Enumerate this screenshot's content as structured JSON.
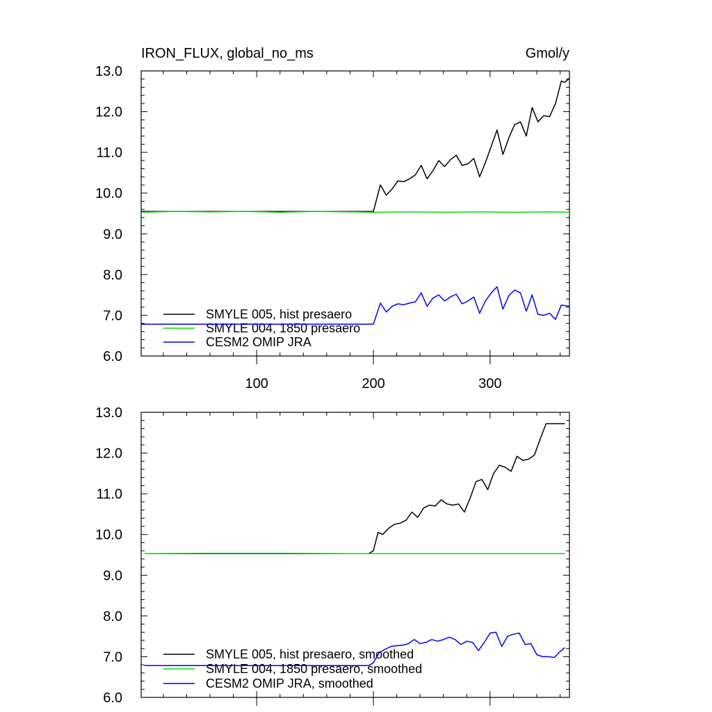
{
  "figure": {
    "title_left": "IRON_FLUX, global_no_ms",
    "title_right": "Gmol/y"
  },
  "chart_data": [
    {
      "type": "line",
      "title": "IRON_FLUX, global_no_ms",
      "units": "Gmol/y",
      "xlim": [
        1,
        368
      ],
      "ylim": [
        6.0,
        13.0
      ],
      "yticks": [
        6.0,
        7.0,
        8.0,
        9.0,
        10.0,
        11.0,
        12.0,
        13.0
      ],
      "ytick_labels": [
        "6.0",
        "7.0",
        "8.0",
        "9.0",
        "10.0",
        "11.0",
        "12.0",
        "13.0"
      ],
      "xticks": [
        100,
        200,
        300
      ],
      "xtick_labels": [
        "100",
        "200",
        "300"
      ],
      "legend_location": "lower-left",
      "series": [
        {
          "name": "SMYLE 005, hist presaero",
          "color": "#000000",
          "x": [
            1,
            200,
            206,
            211,
            216,
            221,
            226,
            231,
            236,
            241,
            246,
            251,
            256,
            261,
            266,
            271,
            276,
            281,
            286,
            291,
            296,
            301,
            306,
            311,
            316,
            321,
            326,
            331,
            336,
            341,
            346,
            351,
            356,
            361,
            364,
            368
          ],
          "y": [
            9.55,
            9.55,
            10.2,
            9.95,
            10.1,
            10.3,
            10.28,
            10.35,
            10.45,
            10.68,
            10.35,
            10.55,
            10.8,
            10.65,
            10.82,
            10.93,
            10.68,
            10.72,
            10.85,
            10.4,
            10.75,
            11.15,
            11.55,
            10.95,
            11.35,
            11.68,
            11.75,
            11.4,
            12.1,
            11.75,
            11.9,
            11.88,
            12.2,
            12.75,
            12.72,
            12.82
          ]
        },
        {
          "name": "SMYLE 004, 1850 presaero",
          "color": "#00dd00",
          "x": [
            1,
            30,
            60,
            90,
            120,
            150,
            180,
            200,
            230,
            260,
            290,
            320,
            350,
            368
          ],
          "y": [
            9.53,
            9.55,
            9.54,
            9.55,
            9.53,
            9.55,
            9.54,
            9.53,
            9.54,
            9.53,
            9.54,
            9.53,
            9.54,
            9.53
          ]
        },
        {
          "name": "CESM2 OMIP JRA",
          "color": "#0000ee",
          "x": [
            1,
            200,
            206,
            211,
            216,
            221,
            226,
            231,
            236,
            241,
            246,
            251,
            256,
            261,
            266,
            271,
            276,
            281,
            286,
            291,
            296,
            301,
            306,
            311,
            316,
            321,
            326,
            331,
            336,
            341,
            346,
            351,
            356,
            361,
            368
          ],
          "y": [
            6.78,
            6.78,
            7.3,
            7.08,
            7.22,
            7.28,
            7.26,
            7.3,
            7.33,
            7.55,
            7.22,
            7.42,
            7.5,
            7.35,
            7.45,
            7.52,
            7.28,
            7.35,
            7.45,
            7.05,
            7.35,
            7.55,
            7.7,
            7.15,
            7.48,
            7.62,
            7.55,
            7.1,
            7.5,
            7.02,
            7.0,
            7.05,
            6.9,
            7.25,
            7.22
          ]
        }
      ]
    },
    {
      "type": "line",
      "xlim": [
        1,
        368
      ],
      "ylim": [
        6.0,
        13.0
      ],
      "yticks": [
        6.0,
        7.0,
        8.0,
        9.0,
        10.0,
        11.0,
        12.0,
        13.0
      ],
      "ytick_labels": [
        "6.0",
        "7.0",
        "8.0",
        "9.0",
        "10.0",
        "11.0",
        "12.0",
        "13.0"
      ],
      "xticks": [
        100,
        200,
        300
      ],
      "legend_location": "lower-left",
      "series": [
        {
          "name": "SMYLE 005, hist presaero, smoothed",
          "color": "#000000",
          "x": [
            4,
            196,
            200,
            204,
            208,
            213,
            218,
            223,
            228,
            233,
            238,
            243,
            248,
            253,
            258,
            263,
            268,
            273,
            278,
            283,
            288,
            293,
            298,
            303,
            308,
            313,
            318,
            323,
            328,
            333,
            338,
            343,
            348,
            353,
            358,
            362,
            364
          ],
          "y": [
            9.53,
            9.53,
            9.6,
            10.05,
            10.0,
            10.15,
            10.25,
            10.28,
            10.35,
            10.55,
            10.42,
            10.65,
            10.72,
            10.7,
            10.85,
            10.75,
            10.72,
            10.75,
            10.55,
            10.9,
            11.3,
            11.35,
            11.1,
            11.5,
            11.7,
            11.65,
            11.55,
            11.92,
            11.82,
            11.85,
            11.95,
            12.35,
            12.72,
            12.72,
            12.72,
            12.72,
            12.72
          ]
        },
        {
          "name": "SMYLE 004, 1850 presaero, smoothed",
          "color": "#00dd00",
          "x": [
            4,
            60,
            120,
            180,
            240,
            300,
            364
          ],
          "y": [
            9.53,
            9.54,
            9.54,
            9.53,
            9.53,
            9.53,
            9.53
          ]
        },
        {
          "name": "CESM2 OMIP JRA, smoothed",
          "color": "#0000ee",
          "x": [
            4,
            196,
            200,
            205,
            210,
            215,
            220,
            225,
            230,
            235,
            240,
            245,
            250,
            255,
            260,
            265,
            270,
            275,
            280,
            285,
            290,
            295,
            300,
            305,
            310,
            315,
            320,
            325,
            330,
            335,
            340,
            345,
            350,
            355,
            359,
            364
          ],
          "y": [
            6.78,
            6.78,
            6.85,
            7.1,
            7.18,
            7.25,
            7.27,
            7.28,
            7.32,
            7.42,
            7.32,
            7.35,
            7.42,
            7.38,
            7.42,
            7.48,
            7.42,
            7.3,
            7.38,
            7.35,
            7.15,
            7.35,
            7.58,
            7.6,
            7.25,
            7.5,
            7.55,
            7.58,
            7.3,
            7.32,
            7.05,
            7.0,
            7.0,
            6.98,
            7.1,
            7.22
          ]
        }
      ]
    }
  ]
}
